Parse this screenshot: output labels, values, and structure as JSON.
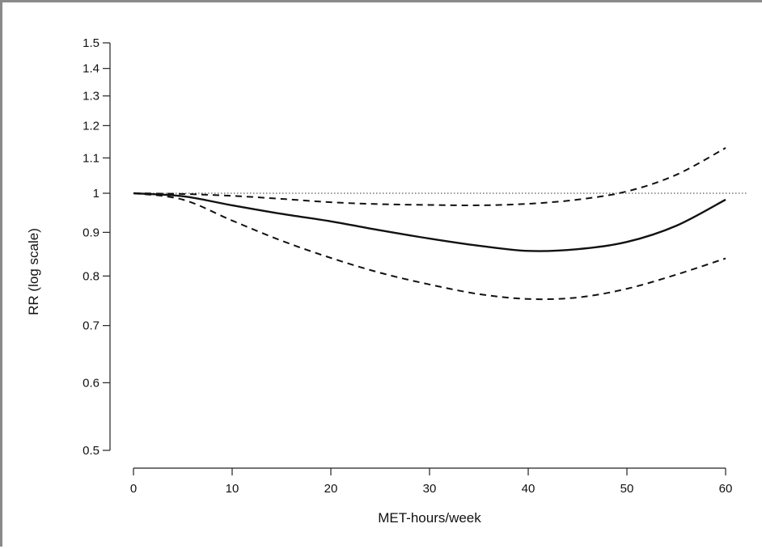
{
  "chart_data": {
    "type": "line",
    "title": "",
    "xlabel": "MET-hours/week",
    "ylabel": "RR (log scale)",
    "xlim": [
      0,
      60
    ],
    "ylim": [
      0.5,
      1.5
    ],
    "y_scale": "log",
    "grid": false,
    "xticks": [
      0,
      10,
      20,
      30,
      40,
      50,
      60
    ],
    "yticks": [
      0.5,
      0.6,
      0.7,
      0.8,
      0.9,
      1,
      1.1,
      1.2,
      1.3,
      1.4,
      1.5
    ],
    "ytick_labels": [
      "0.5",
      "0.6",
      "0.7",
      "0.8",
      "0.9",
      "1",
      "1.1",
      "1.2",
      "1.3",
      "1.4",
      "1.5"
    ],
    "reference_line": {
      "y": 1,
      "style": "dotted"
    },
    "series": [
      {
        "style": "solid",
        "x": [
          0,
          5,
          10,
          15,
          20,
          25,
          30,
          35,
          40,
          45,
          50,
          55,
          60
        ],
        "y": [
          1.0,
          0.992,
          0.968,
          0.946,
          0.927,
          0.905,
          0.885,
          0.868,
          0.856,
          0.86,
          0.877,
          0.916,
          0.983
        ]
      },
      {
        "style": "dashed",
        "x": [
          0,
          5,
          10,
          15,
          20,
          25,
          30,
          35,
          40,
          45,
          50,
          55,
          60
        ],
        "y": [
          1.0,
          0.998,
          0.993,
          0.985,
          0.976,
          0.971,
          0.969,
          0.968,
          0.972,
          0.983,
          1.005,
          1.051,
          1.13
        ]
      },
      {
        "style": "dashed",
        "x": [
          0,
          5,
          10,
          15,
          20,
          25,
          30,
          35,
          40,
          45,
          50,
          55,
          60
        ],
        "y": [
          1.0,
          0.983,
          0.929,
          0.88,
          0.84,
          0.807,
          0.782,
          0.762,
          0.752,
          0.755,
          0.773,
          0.803,
          0.839
        ]
      }
    ]
  }
}
